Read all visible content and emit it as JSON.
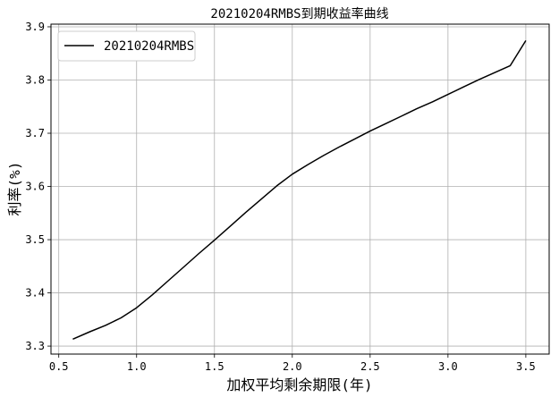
{
  "chart_data": {
    "type": "line",
    "title": "20210204RMBS到期收益率曲线",
    "xlabel": "加权平均剩余期限(年)",
    "ylabel": "利率(%)",
    "xlim": [
      0.45,
      3.65
    ],
    "ylim": [
      3.285,
      3.905
    ],
    "xticks": [
      0.5,
      1.0,
      1.5,
      2.0,
      2.5,
      3.0,
      3.5
    ],
    "xtick_labels": [
      "0.5",
      "1.0",
      "1.5",
      "2.0",
      "2.5",
      "3.0",
      "3.5"
    ],
    "yticks": [
      3.3,
      3.4,
      3.5,
      3.6,
      3.7,
      3.8,
      3.9
    ],
    "ytick_labels": [
      "3.3",
      "3.4",
      "3.5",
      "3.6",
      "3.7",
      "3.8",
      "3.9"
    ],
    "grid": true,
    "legend": "upper-left",
    "series": [
      {
        "name": "20210204RMBS",
        "color": "#000000",
        "x": [
          0.59,
          0.7,
          0.8,
          0.9,
          1.0,
          1.1,
          1.2,
          1.3,
          1.4,
          1.5,
          1.6,
          1.7,
          1.8,
          1.9,
          2.0,
          2.1,
          2.2,
          2.3,
          2.4,
          2.5,
          2.6,
          2.7,
          2.8,
          2.9,
          3.0,
          3.1,
          3.2,
          3.3,
          3.4,
          3.5
        ],
        "y": [
          3.313,
          3.327,
          3.339,
          3.353,
          3.372,
          3.396,
          3.422,
          3.448,
          3.474,
          3.499,
          3.525,
          3.551,
          3.576,
          3.601,
          3.623,
          3.641,
          3.658,
          3.674,
          3.689,
          3.704,
          3.718,
          3.732,
          3.746,
          3.759,
          3.773,
          3.787,
          3.801,
          3.814,
          3.827,
          3.874
        ]
      }
    ]
  }
}
